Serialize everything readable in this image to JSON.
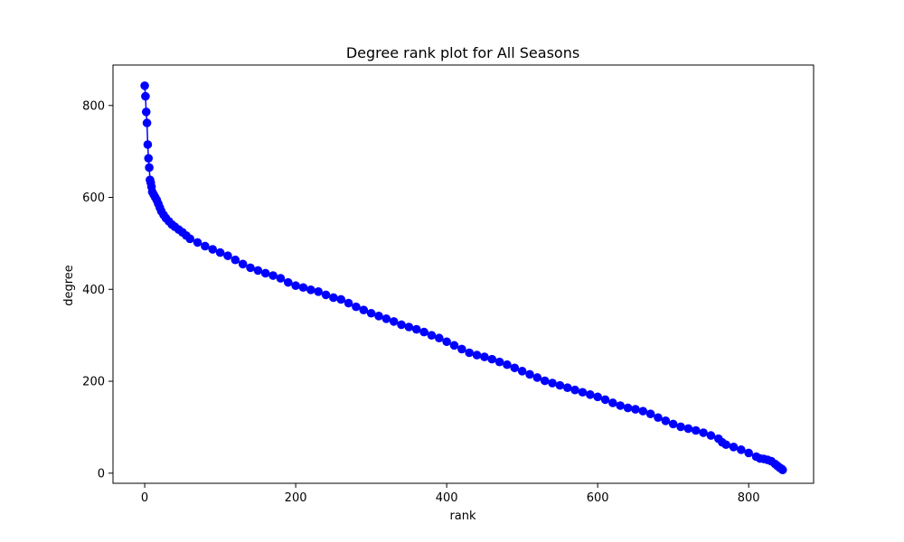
{
  "chart_data": {
    "type": "line",
    "title": "Degree rank plot for All Seasons",
    "xlabel": "rank",
    "ylabel": "degree",
    "xlim": [
      -42,
      886
    ],
    "ylim": [
      -22,
      888
    ],
    "xticks": [
      0,
      200,
      400,
      600,
      800
    ],
    "yticks": [
      0,
      200,
      400,
      600,
      800
    ],
    "grid": false,
    "marker": "circle",
    "series": [
      {
        "color": "#0000ff",
        "points": [
          [
            0,
            843
          ],
          [
            1,
            820
          ],
          [
            2,
            786
          ],
          [
            3,
            762
          ],
          [
            4,
            715
          ],
          [
            5,
            685
          ],
          [
            6,
            665
          ],
          [
            7,
            638
          ],
          [
            8,
            632
          ],
          [
            9,
            623
          ],
          [
            10,
            612
          ],
          [
            12,
            606
          ],
          [
            14,
            600
          ],
          [
            16,
            594
          ],
          [
            18,
            586
          ],
          [
            20,
            578
          ],
          [
            22,
            570
          ],
          [
            25,
            562
          ],
          [
            28,
            555
          ],
          [
            32,
            548
          ],
          [
            36,
            541
          ],
          [
            40,
            536
          ],
          [
            45,
            530
          ],
          [
            50,
            524
          ],
          [
            55,
            517
          ],
          [
            60,
            510
          ],
          [
            70,
            502
          ],
          [
            80,
            494
          ],
          [
            90,
            487
          ],
          [
            100,
            480
          ],
          [
            110,
            473
          ],
          [
            120,
            464
          ],
          [
            130,
            455
          ],
          [
            140,
            447
          ],
          [
            150,
            441
          ],
          [
            160,
            435
          ],
          [
            170,
            430
          ],
          [
            180,
            424
          ],
          [
            190,
            415
          ],
          [
            200,
            408
          ],
          [
            210,
            404
          ],
          [
            220,
            399
          ],
          [
            230,
            395
          ],
          [
            240,
            388
          ],
          [
            250,
            382
          ],
          [
            260,
            378
          ],
          [
            270,
            370
          ],
          [
            280,
            362
          ],
          [
            290,
            355
          ],
          [
            300,
            348
          ],
          [
            310,
            342
          ],
          [
            320,
            336
          ],
          [
            330,
            330
          ],
          [
            340,
            323
          ],
          [
            350,
            318
          ],
          [
            360,
            313
          ],
          [
            370,
            307
          ],
          [
            380,
            300
          ],
          [
            390,
            294
          ],
          [
            400,
            286
          ],
          [
            410,
            278
          ],
          [
            420,
            270
          ],
          [
            430,
            262
          ],
          [
            440,
            257
          ],
          [
            450,
            253
          ],
          [
            460,
            248
          ],
          [
            470,
            242
          ],
          [
            480,
            236
          ],
          [
            490,
            229
          ],
          [
            500,
            222
          ],
          [
            510,
            215
          ],
          [
            520,
            208
          ],
          [
            530,
            201
          ],
          [
            540,
            196
          ],
          [
            550,
            191
          ],
          [
            560,
            186
          ],
          [
            570,
            181
          ],
          [
            580,
            176
          ],
          [
            590,
            171
          ],
          [
            600,
            166
          ],
          [
            610,
            160
          ],
          [
            620,
            153
          ],
          [
            630,
            147
          ],
          [
            640,
            142
          ],
          [
            650,
            139
          ],
          [
            660,
            135
          ],
          [
            670,
            129
          ],
          [
            680,
            121
          ],
          [
            690,
            114
          ],
          [
            700,
            107
          ],
          [
            710,
            101
          ],
          [
            720,
            97
          ],
          [
            730,
            93
          ],
          [
            740,
            88
          ],
          [
            750,
            82
          ],
          [
            760,
            75
          ],
          [
            765,
            67
          ],
          [
            770,
            62
          ],
          [
            780,
            57
          ],
          [
            790,
            51
          ],
          [
            800,
            44
          ],
          [
            810,
            36
          ],
          [
            815,
            32
          ],
          [
            820,
            31
          ],
          [
            825,
            29
          ],
          [
            830,
            26
          ],
          [
            835,
            20
          ],
          [
            838,
            16
          ],
          [
            841,
            12
          ],
          [
            844,
            9
          ],
          [
            845,
            7
          ]
        ]
      }
    ]
  }
}
